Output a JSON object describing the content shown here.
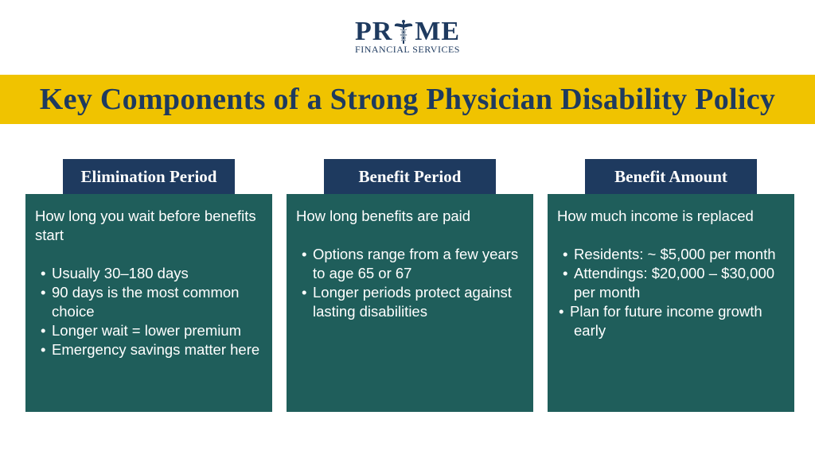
{
  "logo": {
    "word_left": "PR",
    "word_right": "ME",
    "subtitle": "FINANCIAL SERVICES",
    "emblem_icon": "caduceus-icon"
  },
  "banner": {
    "title": "Key Components of a Strong Physician Disability Policy"
  },
  "colors": {
    "navy": "#1e3a5f",
    "teal": "#1f5e5b",
    "yellow": "#f0c300"
  },
  "cards": [
    {
      "title": "Elimination Period",
      "intro": "How long you wait before benefits start",
      "bullets": [
        "Usually 30–180 days",
        "90 days is the most common choice",
        "Longer wait = lower premium",
        "Emergency savings matter here"
      ]
    },
    {
      "title": "Benefit Period",
      "intro": "How long benefits are paid",
      "bullets": [
        "Options range from a few years to age 65 or 67",
        "Longer periods protect against lasting disabilities"
      ]
    },
    {
      "title": "Benefit Amount",
      "intro": "How much income is replaced",
      "bullets": [
        "Residents: ~ $5,000 per month",
        "Attendings: $20,000 – $30,000 per month",
        "Plan for future income growth early"
      ]
    }
  ]
}
